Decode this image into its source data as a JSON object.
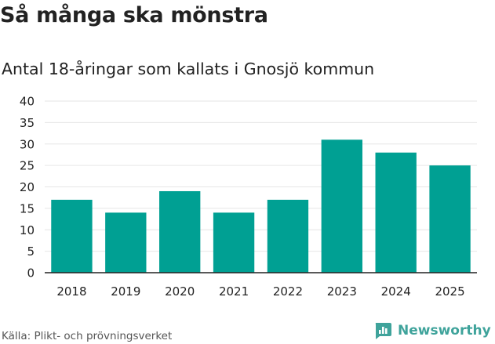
{
  "title": "Så många ska mönstra",
  "subtitle": "Antal 18-åringar som kallats i Gnosjö kommun",
  "source": "Källa: Plikt- och prövningsverket",
  "brand": {
    "name": "Newsworthy",
    "icon": "newsworthy-logo-icon",
    "color": "#3fa39b"
  },
  "colors": {
    "bar": "#00a093",
    "grid": "#e6e6e6",
    "axis": "#222222",
    "tick_text": "#222222"
  },
  "chart_data": {
    "type": "bar",
    "categories": [
      "2018",
      "2019",
      "2020",
      "2021",
      "2022",
      "2023",
      "2024",
      "2025"
    ],
    "values": [
      17,
      14,
      19,
      14,
      17,
      31,
      28,
      25
    ],
    "ylim": [
      0,
      40
    ],
    "yticks": [
      0,
      5,
      10,
      15,
      20,
      25,
      30,
      35,
      40
    ],
    "grid": true,
    "legend": false
  }
}
